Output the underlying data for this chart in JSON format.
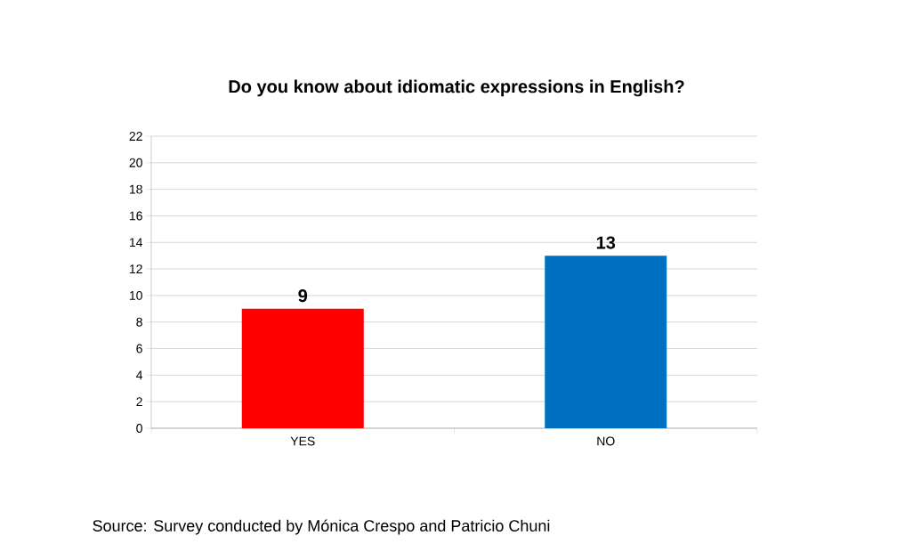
{
  "chart_data": {
    "type": "bar",
    "title": "Do you know about idiomatic expressions in English?",
    "categories": [
      "YES",
      "NO"
    ],
    "values": [
      9,
      13
    ],
    "colors": [
      "#ff0000",
      "#0070c0"
    ],
    "ylim": [
      0,
      22
    ],
    "yticks": [
      0,
      2,
      4,
      6,
      8,
      10,
      12,
      14,
      16,
      18,
      20,
      22
    ],
    "grid": "y",
    "data_labels": true,
    "annotations": [
      "Source:  Survey conducted by Mónica Crespo and Patricio Chuni"
    ]
  }
}
